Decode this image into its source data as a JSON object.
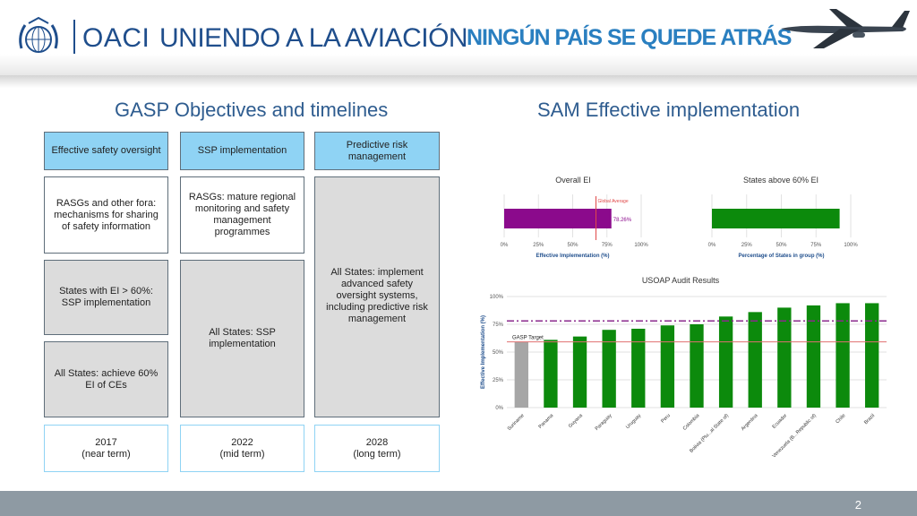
{
  "header": {
    "org": "OACI",
    "motto": "UNIENDO A LA AVIACIÓN",
    "slogan": "NINGÚN PAÍS SE QUEDE ATRÁS"
  },
  "left": {
    "title": "GASP Objectives and timelines",
    "headers": [
      "Effective safety oversight",
      "SSP implementation",
      "Predictive risk management"
    ],
    "row1": [
      "RASGs and other fora: mechanisms for sharing of safety information",
      "RASGs: mature regional monitoring and safety management programmes"
    ],
    "col3_body": "All States: implement advanced safety oversight systems, including predictive risk management",
    "col1_mid": "States with EI > 60%: SSP implementation",
    "col1_low": "All States: achieve 60% EI of CEs",
    "col2_mid": "All States: SSP implementation",
    "timelines": [
      {
        "year": "2017",
        "term": "(near term)"
      },
      {
        "year": "2022",
        "term": "(mid term)"
      },
      {
        "year": "2028",
        "term": "(long term)"
      }
    ]
  },
  "right": {
    "title": "SAM Effective implementation"
  },
  "chart_data": [
    {
      "type": "bar",
      "orientation": "horizontal",
      "title": "Overall EI",
      "xlabel": "Effective Implementation (%)",
      "ticks": [
        "0%",
        "25%",
        "50%",
        "75%",
        "100%"
      ],
      "xlim": [
        0,
        100
      ],
      "values": [
        78.26
      ],
      "value_label": "78.26%",
      "reference": {
        "label": "Global Average",
        "value": 67
      },
      "colors": {
        "bar": "#8b0a8c",
        "reference": "#e04848"
      }
    },
    {
      "type": "bar",
      "orientation": "horizontal",
      "title": "States above 60% EI",
      "xlabel": "Percentage of States in group (%)",
      "ticks": [
        "0%",
        "25%",
        "50%",
        "75%",
        "100%"
      ],
      "xlim": [
        0,
        100
      ],
      "values": [
        92
      ],
      "colors": {
        "bar": "#0c8a0c"
      }
    },
    {
      "type": "bar",
      "title": "USOAP Audit Results",
      "ylabel": "Effective Implementation (%)",
      "ticks": [
        "0%",
        "25%",
        "50%",
        "75%",
        "100%"
      ],
      "ylim": [
        0,
        100
      ],
      "categories": [
        "Suriname",
        "Panama",
        "Guyana",
        "Paraguay",
        "Uruguay",
        "Peru",
        "Colombia",
        "Bolivia (Plu...al State of)",
        "Argentina",
        "Ecuador",
        "Venezuela (B...Republic of)",
        "Chile",
        "Brazil"
      ],
      "values": [
        59,
        61,
        64,
        70,
        71,
        74,
        75,
        82,
        86,
        90,
        92,
        94,
        94
      ],
      "target": {
        "label": "GASP Target",
        "value": 60
      },
      "average_line": 78,
      "colors": {
        "bar": "#0c8a0c",
        "first_bar": "#a6a6a6",
        "target": "#e07070",
        "average": "#8b2a8c"
      }
    }
  ],
  "footer": {
    "page": "2"
  }
}
